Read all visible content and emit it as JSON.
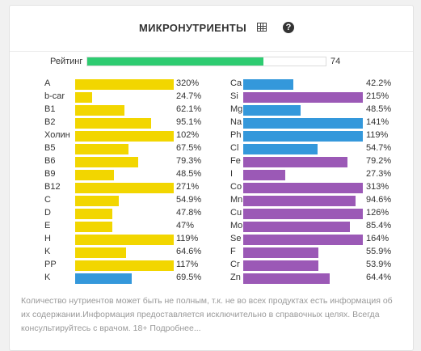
{
  "header": {
    "title": "МИКРОНУТРИЕНТЫ",
    "table_icon": "table-icon",
    "help_icon": "question-circle-icon",
    "help_glyph": "?"
  },
  "rating": {
    "label": "Рейтинг",
    "value": "74",
    "fraction": 0.74,
    "color": "#2ecc71"
  },
  "colors": {
    "yellow": "#f2d600",
    "blue": "#3498db",
    "purple": "#9b59b6"
  },
  "left_column": [
    {
      "name": "A",
      "value": "320%",
      "fill": 1.0,
      "color": "#f2d600"
    },
    {
      "name": "b-car",
      "value": "24.7%",
      "fill": 0.175,
      "color": "#f2d600"
    },
    {
      "name": "B1",
      "value": "62.1%",
      "fill": 0.5,
      "color": "#f2d600"
    },
    {
      "name": "B2",
      "value": "95.1%",
      "fill": 0.77,
      "color": "#f2d600"
    },
    {
      "name": "Холин",
      "value": "102%",
      "fill": 1.0,
      "color": "#f2d600"
    },
    {
      "name": "B5",
      "value": "67.5%",
      "fill": 0.54,
      "color": "#f2d600"
    },
    {
      "name": "B6",
      "value": "79.3%",
      "fill": 0.64,
      "color": "#f2d600"
    },
    {
      "name": "B9",
      "value": "48.5%",
      "fill": 0.39,
      "color": "#f2d600"
    },
    {
      "name": "B12",
      "value": "271%",
      "fill": 1.0,
      "color": "#f2d600"
    },
    {
      "name": "C",
      "value": "54.9%",
      "fill": 0.44,
      "color": "#f2d600"
    },
    {
      "name": "D",
      "value": "47.8%",
      "fill": 0.38,
      "color": "#f2d600"
    },
    {
      "name": "E",
      "value": "47%",
      "fill": 0.38,
      "color": "#f2d600"
    },
    {
      "name": "H",
      "value": "119%",
      "fill": 1.0,
      "color": "#f2d600"
    },
    {
      "name": "K",
      "value": "64.6%",
      "fill": 0.52,
      "color": "#f2d600"
    },
    {
      "name": "PP",
      "value": "117%",
      "fill": 1.0,
      "color": "#f2d600"
    },
    {
      "name": "K",
      "value": "69.5%",
      "fill": 0.57,
      "color": "#3498db"
    }
  ],
  "right_column": [
    {
      "name": "Ca",
      "value": "42.2%",
      "fill": 0.42,
      "color": "#3498db"
    },
    {
      "name": "Si",
      "value": "215%",
      "fill": 1.0,
      "color": "#9b59b6"
    },
    {
      "name": "Mg",
      "value": "48.5%",
      "fill": 0.48,
      "color": "#3498db"
    },
    {
      "name": "Na",
      "value": "141%",
      "fill": 1.0,
      "color": "#3498db"
    },
    {
      "name": "Ph",
      "value": "119%",
      "fill": 1.0,
      "color": "#3498db"
    },
    {
      "name": "Cl",
      "value": "54.7%",
      "fill": 0.62,
      "color": "#3498db"
    },
    {
      "name": "Fe",
      "value": "79.2%",
      "fill": 0.87,
      "color": "#9b59b6"
    },
    {
      "name": "I",
      "value": "27.3%",
      "fill": 0.35,
      "color": "#9b59b6"
    },
    {
      "name": "Co",
      "value": "313%",
      "fill": 1.0,
      "color": "#9b59b6"
    },
    {
      "name": "Mn",
      "value": "94.6%",
      "fill": 0.94,
      "color": "#9b59b6"
    },
    {
      "name": "Cu",
      "value": "126%",
      "fill": 1.0,
      "color": "#9b59b6"
    },
    {
      "name": "Mo",
      "value": "85.4%",
      "fill": 0.89,
      "color": "#9b59b6"
    },
    {
      "name": "Se",
      "value": "164%",
      "fill": 1.0,
      "color": "#9b59b6"
    },
    {
      "name": "F",
      "value": "55.9%",
      "fill": 0.63,
      "color": "#9b59b6"
    },
    {
      "name": "Cr",
      "value": "53.9%",
      "fill": 0.63,
      "color": "#9b59b6"
    },
    {
      "name": "Zn",
      "value": "64.4%",
      "fill": 0.72,
      "color": "#9b59b6"
    }
  ],
  "footer": {
    "text": "Количество нутриентов может быть не полным, т.к. не во всех продуктах есть информация об их содержании.Информация предоставляется исключительно в справочных целях. Всегда консультируйтесь с врачом. 18+ Подробнее..."
  }
}
